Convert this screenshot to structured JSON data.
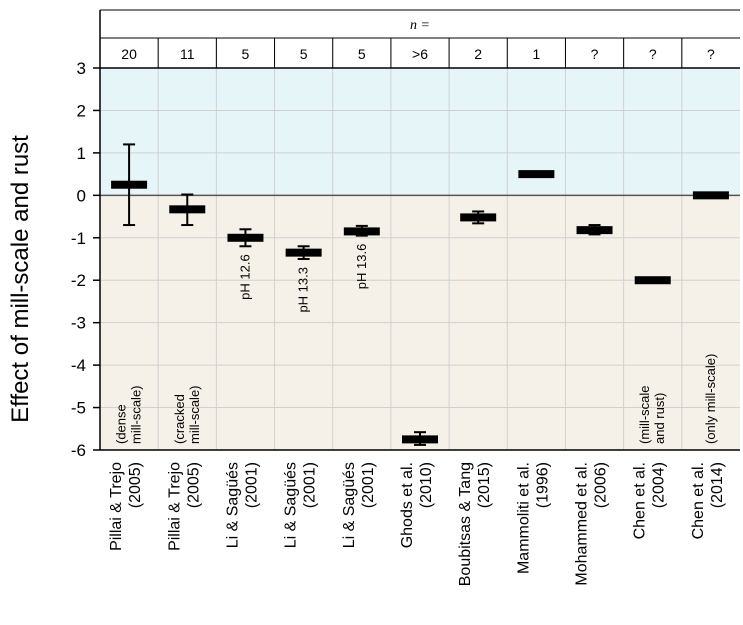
{
  "chart_data": {
    "type": "scatter",
    "ylabel": "Effect of mill-scale and rust",
    "ylim": [
      -6,
      3
    ],
    "yticks": [
      "3",
      "2",
      "1",
      "0",
      "-1",
      "-2",
      "-3",
      "-4",
      "-5",
      "-6"
    ],
    "n_header": "n =",
    "colors": {
      "positive_region": "#e6f5f8",
      "negative_region": "#f6f1e8",
      "gridline": "#d0d0d0",
      "marker": "#000000"
    },
    "studies": [
      {
        "source": [
          "Pillai & Trejo",
          "(2005)"
        ],
        "n": "20",
        "value": 0.25,
        "err_low": -0.7,
        "err_high": 1.2,
        "note": [
          "(dense",
          "mill-scale)"
        ]
      },
      {
        "source": [
          "Pillai & Trejo",
          "(2005)"
        ],
        "n": "11",
        "value": -0.33,
        "err_low": -0.7,
        "err_high": 0.02,
        "note": [
          "(cracked",
          "mill-scale)"
        ]
      },
      {
        "source": [
          "Li & Sagüés",
          "(2001)"
        ],
        "n": "5",
        "value": -1.0,
        "err_low": -1.2,
        "err_high": -0.8,
        "note": [
          "pH 12.6"
        ]
      },
      {
        "source": [
          "Li & Sagüés",
          "(2001)"
        ],
        "n": "5",
        "value": -1.35,
        "err_low": -1.5,
        "err_high": -1.2,
        "note": [
          "pH 13.3"
        ]
      },
      {
        "source": [
          "Li & Sagüés",
          "(2001)"
        ],
        "n": "5",
        "value": -0.85,
        "err_low": -0.95,
        "err_high": -0.72,
        "note": [
          "pH 13.6"
        ]
      },
      {
        "source": [
          "Ghods et al.",
          "(2010)"
        ],
        "n": ">6",
        "value": -5.75,
        "err_low": -5.88,
        "err_high": -5.58,
        "note": []
      },
      {
        "source": [
          "Boubitsas & Tang",
          "(2015)"
        ],
        "n": "2",
        "value": -0.52,
        "err_low": -0.66,
        "err_high": -0.38,
        "note": []
      },
      {
        "source": [
          "Mammoliti et al.",
          "(1996)"
        ],
        "n": "1",
        "value": 0.5,
        "err_low": null,
        "err_high": null,
        "note": []
      },
      {
        "source": [
          "Mohammed et al.",
          "(2006)"
        ],
        "n": "?",
        "value": -0.82,
        "err_low": -0.92,
        "err_high": -0.7,
        "note": []
      },
      {
        "source": [
          "Chen et al.",
          "(2004)"
        ],
        "n": "?",
        "value": -2.0,
        "err_low": null,
        "err_high": null,
        "note": [
          "(mill-scale",
          "and rust)"
        ]
      },
      {
        "source": [
          "Chen et al.",
          "(2014)"
        ],
        "n": "?",
        "value": 0.0,
        "err_low": null,
        "err_high": null,
        "note": [
          "(only mill-scale)"
        ]
      }
    ]
  }
}
